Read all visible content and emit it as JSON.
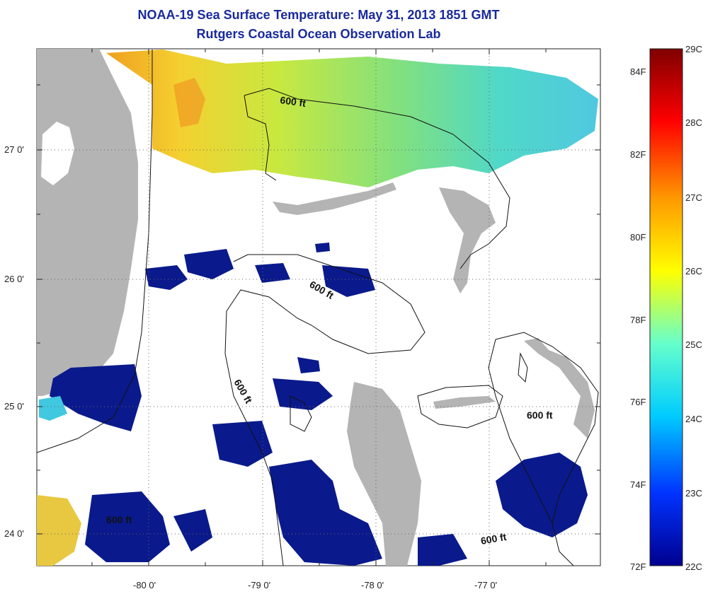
{
  "title": "NOAA-19 Sea Surface Temperature:  May 31, 2013 1851 GMT",
  "subtitle": "Rutgers Coastal Ocean Observation Lab",
  "x_ticks": [
    "-80 0'",
    "-79 0'",
    "-78 0'",
    "-77 0'"
  ],
  "y_ticks": [
    "27 0'",
    "26 0'",
    "25 0'",
    "24 0'"
  ],
  "contour_labels": [
    "600 ft",
    "600 ft",
    "600 ft",
    "600 ft",
    "600 ft",
    "600 ft"
  ],
  "colorbar": {
    "celsius": [
      "29C",
      "28C",
      "27C",
      "26C",
      "25C",
      "24C",
      "23C",
      "22C"
    ],
    "fahrenheit": [
      "84F",
      "82F",
      "80F",
      "78F",
      "76F",
      "74F",
      "72F"
    ],
    "colors": [
      "#7f0000",
      "#ff0000",
      "#ff9900",
      "#ffff00",
      "#66ffcc",
      "#00ccff",
      "#0033ff",
      "#00008f"
    ]
  },
  "colors": {
    "land": "#b4b4b4",
    "title": "#1a2a9c",
    "cold_water": "#0a1a8c",
    "warm_water": "#f0c020"
  }
}
